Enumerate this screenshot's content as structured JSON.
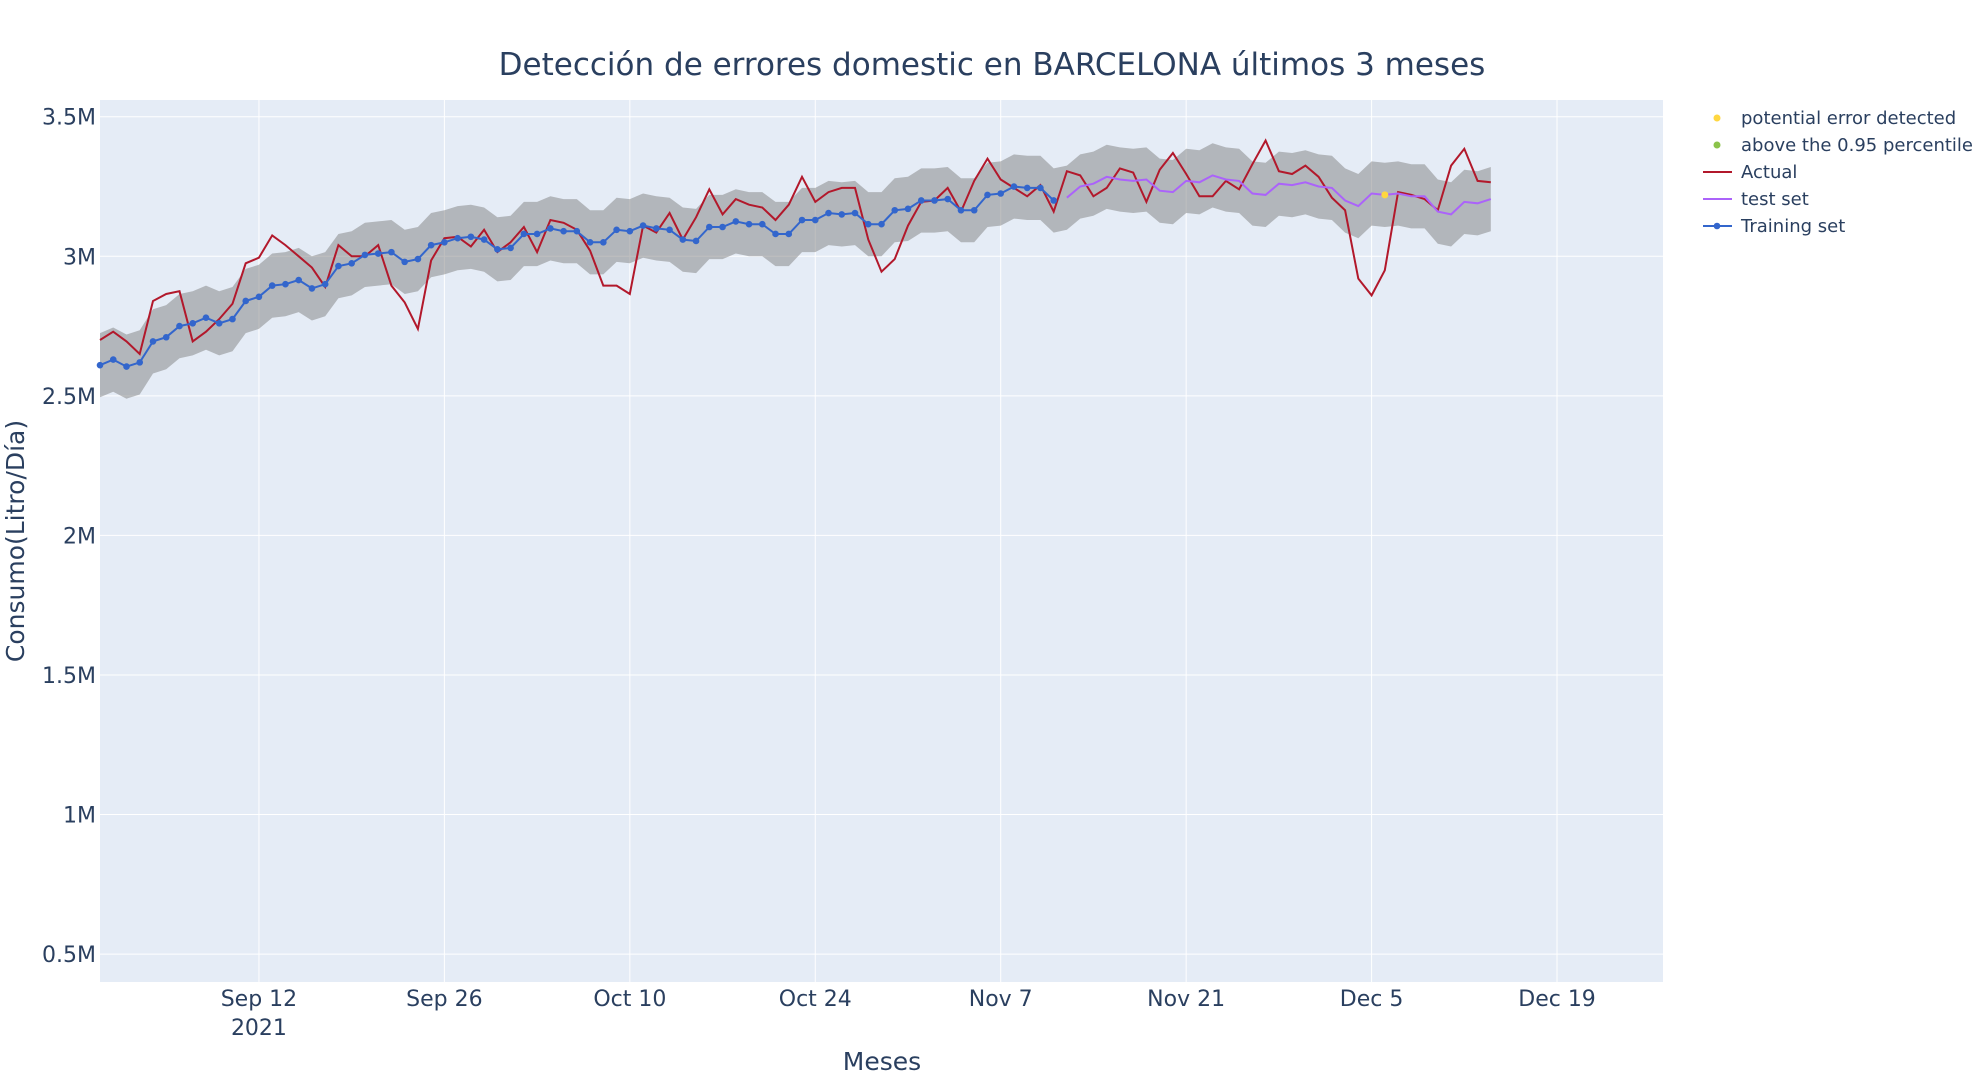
{
  "chart_data": {
    "type": "line",
    "title": "Detección de errores domestic en BARCELONA últimos 3 meses",
    "xlabel": "Meses",
    "ylabel": "Consumo(Litro/Día)",
    "x_range": [
      "2021-08-31",
      "2021-12-27"
    ],
    "ylim": [
      400000,
      3560000
    ],
    "x_ticks": [
      {
        "date": "2021-09-12",
        "label": "Sep 12",
        "sublabel": "2021"
      },
      {
        "date": "2021-09-26",
        "label": "Sep 26",
        "sublabel": ""
      },
      {
        "date": "2021-10-10",
        "label": "Oct 10",
        "sublabel": ""
      },
      {
        "date": "2021-10-24",
        "label": "Oct 24",
        "sublabel": ""
      },
      {
        "date": "2021-11-07",
        "label": "Nov 7",
        "sublabel": ""
      },
      {
        "date": "2021-11-21",
        "label": "Nov 21",
        "sublabel": ""
      },
      {
        "date": "2021-12-05",
        "label": "Dec 5",
        "sublabel": ""
      },
      {
        "date": "2021-12-19",
        "label": "Dec 19",
        "sublabel": ""
      }
    ],
    "y_ticks": [
      {
        "value": 500000,
        "label": "0.5M"
      },
      {
        "value": 1000000,
        "label": "1M"
      },
      {
        "value": 1500000,
        "label": "1.5M"
      },
      {
        "value": 2000000,
        "label": "2M"
      },
      {
        "value": 2500000,
        "label": "2.5M"
      },
      {
        "value": 3000000,
        "label": "3M"
      },
      {
        "value": 3500000,
        "label": "3.5M"
      }
    ],
    "grid": true,
    "legend_position": "top-right",
    "start_date": "2021-08-31",
    "series": [
      {
        "name": "potential error detected",
        "kind": "markers",
        "color": "#ffd740",
        "points": [
          [
            2021120600,
            3220000
          ]
        ],
        "dates": [
          "2021-12-06"
        ],
        "values": [
          3220000
        ]
      },
      {
        "name": "above the 0.95 percentile",
        "kind": "markers",
        "color": "#8bc34a",
        "dates": [],
        "values": []
      },
      {
        "name": "Actual",
        "kind": "line",
        "color": "#b2182b",
        "values": [
          2700000,
          2730000,
          2695000,
          2650000,
          2840000,
          2865000,
          2875000,
          2695000,
          2730000,
          2775000,
          2830000,
          2975000,
          2995000,
          3075000,
          3040000,
          3000000,
          2960000,
          2890000,
          3040000,
          3000000,
          3000000,
          3040000,
          2895000,
          2835000,
          2740000,
          2985000,
          3065000,
          3070000,
          3035000,
          3095000,
          3015000,
          3050000,
          3105000,
          3015000,
          3130000,
          3120000,
          3095000,
          3020000,
          2895000,
          2895000,
          2865000,
          3110000,
          3085000,
          3155000,
          3060000,
          3140000,
          3240000,
          3150000,
          3205000,
          3185000,
          3175000,
          3130000,
          3185000,
          3285000,
          3195000,
          3230000,
          3245000,
          3245000,
          3060000,
          2945000,
          2990000,
          3110000,
          3195000,
          3200000,
          3245000,
          3160000,
          3270000,
          3350000,
          3275000,
          3245000,
          3215000,
          3255000,
          3160000,
          3305000,
          3290000,
          3215000,
          3245000,
          3315000,
          3300000,
          3195000,
          3310000,
          3370000,
          3295000,
          3215000,
          3215000,
          3270000,
          3240000,
          3330000,
          3415000,
          3305000,
          3295000,
          3325000,
          3285000,
          3210000,
          3165000,
          2920000,
          2860000,
          2950000,
          3230000,
          3220000,
          3205000,
          3165000,
          3325000,
          3385000,
          3270000,
          3265000
        ]
      },
      {
        "name": "test set",
        "kind": "line",
        "color": "#ab63fa",
        "offset": 73,
        "values": [
          3210000,
          3250000,
          3260000,
          3285000,
          3275000,
          3270000,
          3275000,
          3235000,
          3230000,
          3270000,
          3265000,
          3290000,
          3275000,
          3270000,
          3225000,
          3220000,
          3260000,
          3255000,
          3265000,
          3250000,
          3245000,
          3200000,
          3180000,
          3225000,
          3220000,
          3225000,
          3215000,
          3215000,
          3160000,
          3150000,
          3195000,
          3190000,
          3205000
        ]
      },
      {
        "name": "Training set",
        "kind": "lines+markers",
        "color": "#3366cc",
        "values": [
          2610000,
          2630000,
          2605000,
          2620000,
          2695000,
          2710000,
          2750000,
          2760000,
          2780000,
          2760000,
          2775000,
          2840000,
          2855000,
          2895000,
          2900000,
          2915000,
          2885000,
          2900000,
          2965000,
          2975000,
          3005000,
          3010000,
          3015000,
          2980000,
          2990000,
          3040000,
          3050000,
          3065000,
          3070000,
          3060000,
          3025000,
          3030000,
          3080000,
          3080000,
          3100000,
          3090000,
          3090000,
          3050000,
          3050000,
          3095000,
          3090000,
          3110000,
          3100000,
          3095000,
          3060000,
          3055000,
          3105000,
          3105000,
          3125000,
          3115000,
          3115000,
          3080000,
          3080000,
          3130000,
          3130000,
          3155000,
          3150000,
          3155000,
          3115000,
          3115000,
          3165000,
          3170000,
          3200000,
          3200000,
          3205000,
          3165000,
          3165000,
          3220000,
          3225000,
          3250000,
          3245000,
          3245000,
          3200000
        ]
      }
    ],
    "band": {
      "name": "confidence band",
      "color": "rgba(128,128,128,0.5)",
      "half_width": 115000
    }
  }
}
